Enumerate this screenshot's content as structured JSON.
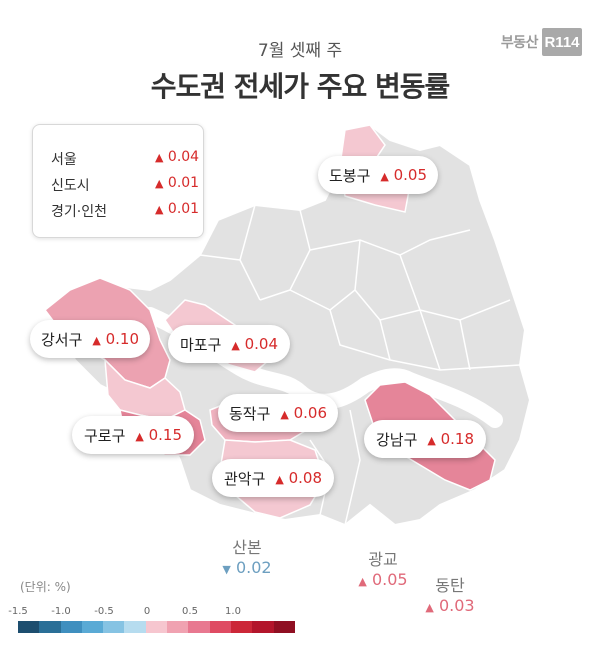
{
  "brand": {
    "text": "부동산",
    "logo": "R114"
  },
  "subtitle": "7월 셋째 주",
  "title": "수도권 전세가 주요 변동률",
  "summary": [
    {
      "name": "서울",
      "value": "0.04"
    },
    {
      "name": "신도시",
      "value": "0.01"
    },
    {
      "name": "경기·인천",
      "value": "0.01"
    }
  ],
  "districts": {
    "dobong": {
      "name": "도봉구",
      "value": "0.05"
    },
    "gangseo": {
      "name": "강서구",
      "value": "0.10"
    },
    "mapo": {
      "name": "마포구",
      "value": "0.04"
    },
    "dongjak": {
      "name": "동작구",
      "value": "0.06"
    },
    "guro": {
      "name": "구로구",
      "value": "0.15"
    },
    "gangnam": {
      "name": "강남구",
      "value": "0.18"
    },
    "gwanak": {
      "name": "관악구",
      "value": "0.08"
    }
  },
  "areas": {
    "sanbon": {
      "name": "산본",
      "value": "0.02",
      "direction": "down"
    },
    "gwanggyo": {
      "name": "광교",
      "value": "0.05",
      "direction": "up"
    },
    "dongtan": {
      "name": "동탄",
      "value": "0.03",
      "direction": "up"
    }
  },
  "scale": {
    "unit_label": "(단위: %)",
    "ticks": [
      "-1.5",
      "-1.0",
      "-0.5",
      "0",
      "0.5",
      "1.0"
    ],
    "colors": [
      "#1d4e6f",
      "#2a6f97",
      "#3f8fbf",
      "#5aaad5",
      "#86c3e3",
      "#b6dcef",
      "#f6c6cf",
      "#f0a2b1",
      "#e87890",
      "#df4b63",
      "#cc2738",
      "#b3152b",
      "#8f0f22"
    ]
  },
  "map_colors": {
    "base": "#e2e2e2",
    "border": "#ffffff",
    "river": "#ffffff",
    "light": "#f4c8d1",
    "medium": "#eca2b1",
    "strong": "#e58599"
  }
}
